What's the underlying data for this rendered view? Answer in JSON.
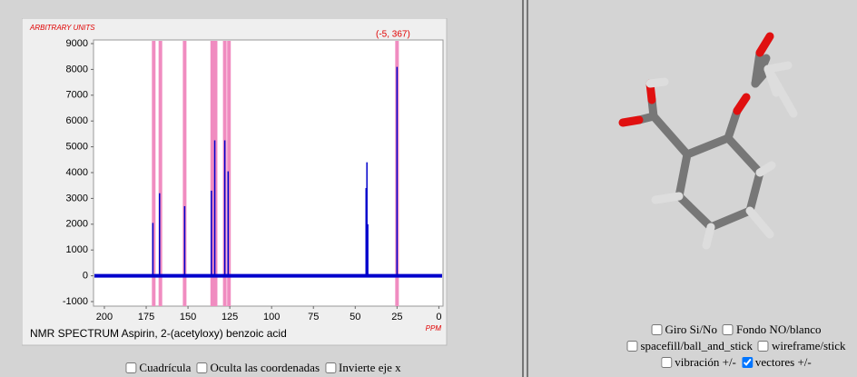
{
  "chart_data": {
    "type": "stem",
    "title": "NMR SPECTRUM Aspirin, 2-(acetyloxy) benzoic acid",
    "y_label": "ARBITRARY UNITS",
    "x_label": "PPM",
    "annotation": "(-5, 367)",
    "xlim": [
      206.5,
      -2.5
    ],
    "xticks": [
      200,
      175,
      150,
      125,
      100,
      75,
      50,
      25,
      0
    ],
    "ylim": [
      -1176,
      9141
    ],
    "yticks": [
      -1000,
      0,
      1000,
      2000,
      3000,
      4000,
      5000,
      6000,
      7000,
      8000,
      9000
    ],
    "highlights": [
      170.5,
      166.5,
      152,
      135.5,
      133.5,
      128,
      125.5,
      25
    ],
    "highlight_color": "#f08cc0",
    "series": [
      {
        "color": "#0000cc",
        "x": [
          171,
          167,
          152,
          136,
          134,
          128,
          126,
          43.5,
          43,
          42.5,
          25
        ],
        "values": [
          2050,
          3200,
          2700,
          3300,
          5250,
          5250,
          4050,
          3400,
          4400,
          2000,
          8100
        ]
      }
    ]
  },
  "left_controls": [
    {
      "label": "Cuadrícula",
      "checked": false
    },
    {
      "label": "Oculta las coordenadas",
      "checked": false
    },
    {
      "label": "Invierte eje x",
      "checked": false
    }
  ],
  "right_controls": [
    [
      {
        "label": "Giro Si/No",
        "checked": false
      },
      {
        "label": "Fondo NO/blanco",
        "checked": false
      }
    ],
    [
      {
        "label": "spacefill/ball_and_stick",
        "checked": false
      },
      {
        "label": "wireframe/stick",
        "checked": false
      }
    ],
    [
      {
        "label": "vibración +/-",
        "checked": false
      },
      {
        "label": "vectores +/-",
        "checked": true
      }
    ]
  ]
}
